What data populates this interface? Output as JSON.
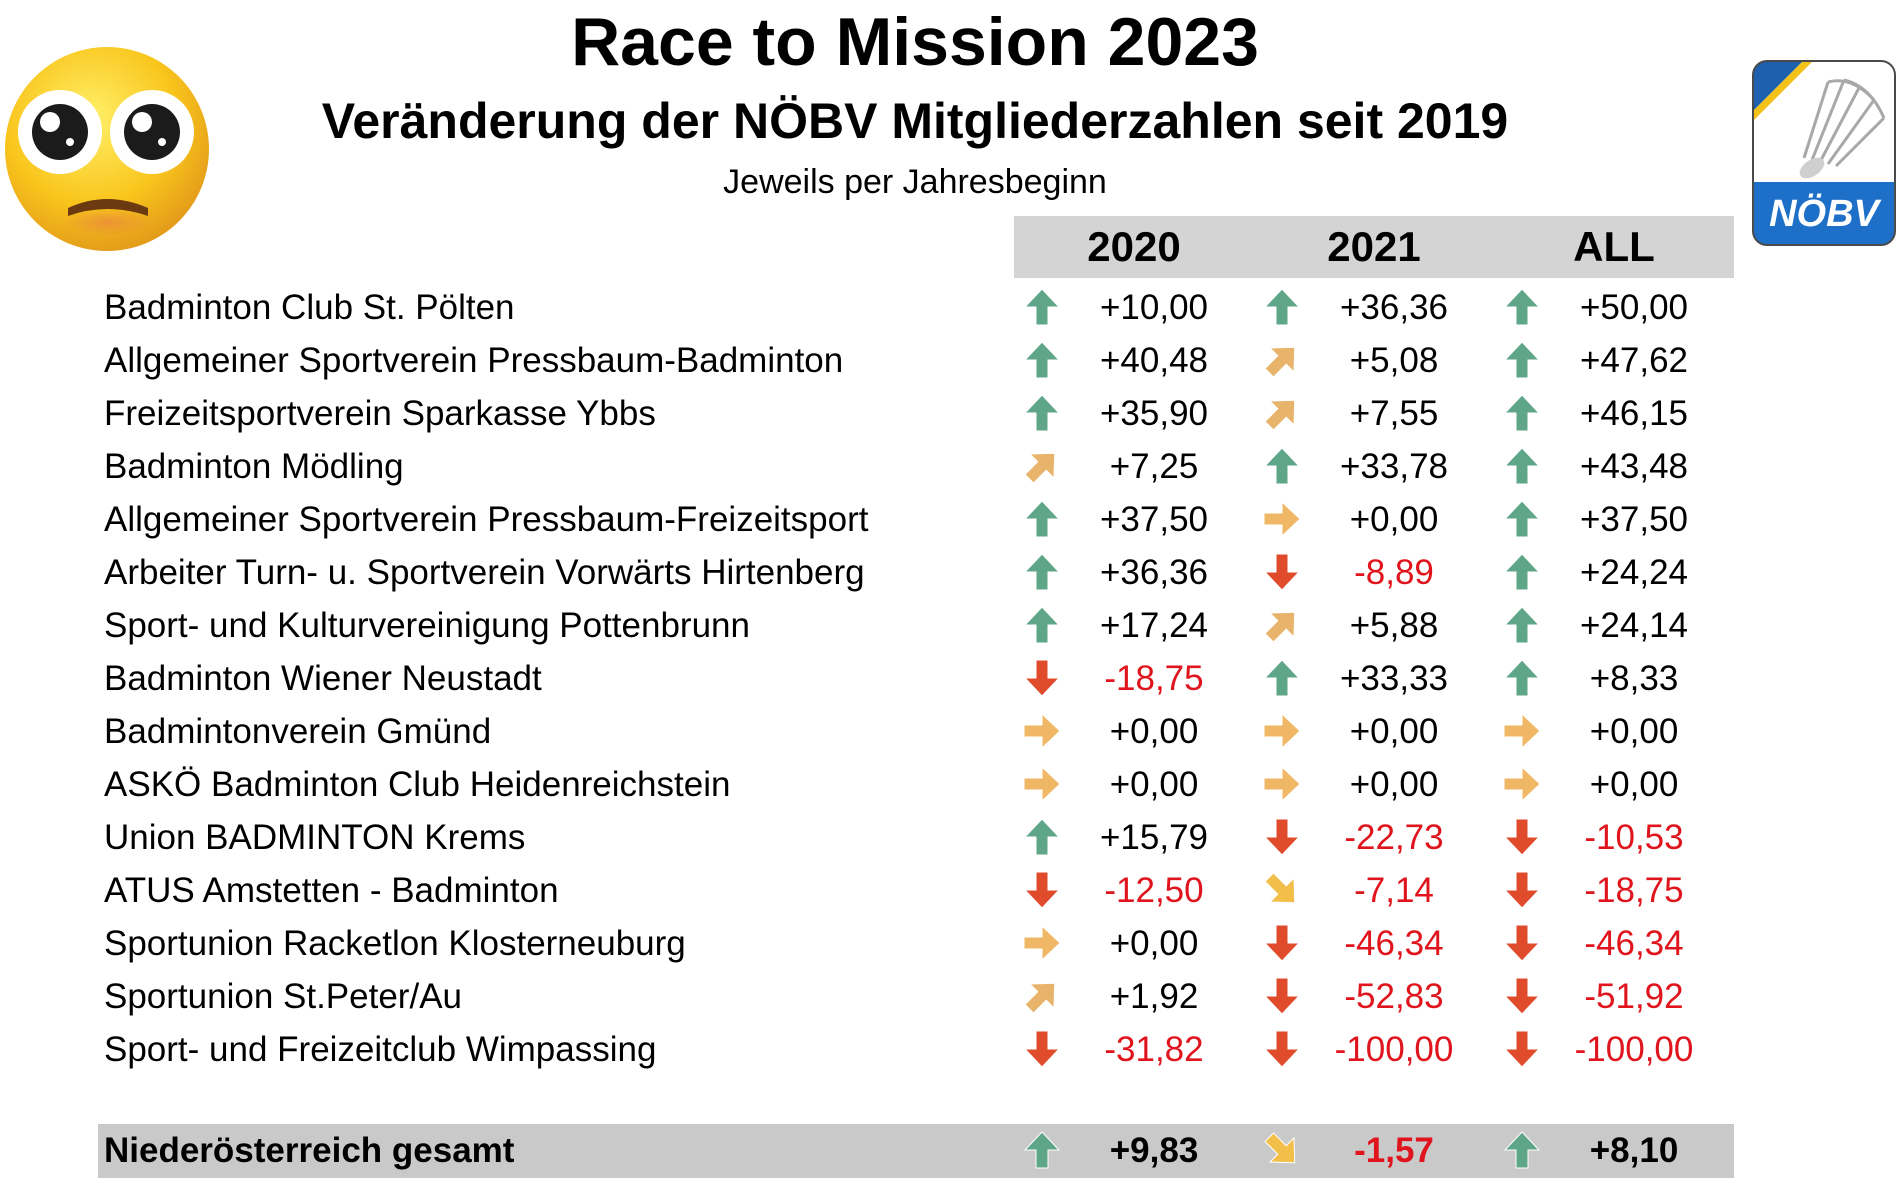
{
  "title": "Race to Mission 2023",
  "subtitle": "Veränderung der NÖBV Mitgliederzahlen seit 2019",
  "note": "Jeweils per Jahresbeginn",
  "logo": {
    "text": "NÖBV",
    "icon": "shuttlecock-icon"
  },
  "emoji": {
    "icon": "pleading-face-emoji"
  },
  "colors": {
    "negative": "#e0141c",
    "arrow_up": "#5fa689",
    "arrow_diag_up": "#e8b36b",
    "arrow_right": "#f0b866",
    "arrow_down": "#e04b2c",
    "arrow_diag_down": "#f2c04a",
    "header_bg": "#d4d4d4",
    "total_bg": "#c9c9c9"
  },
  "columns": [
    "2020",
    "2021",
    "ALL"
  ],
  "rows": [
    {
      "club": "Badminton Club St. Pölten",
      "cells": [
        {
          "arrow": "up",
          "value": "+10,00"
        },
        {
          "arrow": "up",
          "value": "+36,36"
        },
        {
          "arrow": "up",
          "value": "+50,00"
        }
      ]
    },
    {
      "club": "Allgemeiner Sportverein Pressbaum-Badminton",
      "cells": [
        {
          "arrow": "up",
          "value": "+40,48"
        },
        {
          "arrow": "diag-up",
          "value": "+5,08"
        },
        {
          "arrow": "up",
          "value": "+47,62"
        }
      ]
    },
    {
      "club": "Freizeitsportverein Sparkasse Ybbs",
      "cells": [
        {
          "arrow": "up",
          "value": "+35,90"
        },
        {
          "arrow": "diag-up",
          "value": "+7,55"
        },
        {
          "arrow": "up",
          "value": "+46,15"
        }
      ]
    },
    {
      "club": "Badminton Mödling",
      "cells": [
        {
          "arrow": "diag-up",
          "value": "+7,25"
        },
        {
          "arrow": "up",
          "value": "+33,78"
        },
        {
          "arrow": "up",
          "value": "+43,48"
        }
      ]
    },
    {
      "club": "Allgemeiner Sportverein Pressbaum-Freizeitsport",
      "cells": [
        {
          "arrow": "up",
          "value": "+37,50"
        },
        {
          "arrow": "right",
          "value": "+0,00"
        },
        {
          "arrow": "up",
          "value": "+37,50"
        }
      ]
    },
    {
      "club": "Arbeiter Turn- u. Sportverein Vorwärts Hirtenberg",
      "cells": [
        {
          "arrow": "up",
          "value": "+36,36"
        },
        {
          "arrow": "down",
          "value": "-8,89"
        },
        {
          "arrow": "up",
          "value": "+24,24"
        }
      ]
    },
    {
      "club": "Sport- und Kulturvereinigung Pottenbrunn",
      "cells": [
        {
          "arrow": "up",
          "value": "+17,24"
        },
        {
          "arrow": "diag-up",
          "value": "+5,88"
        },
        {
          "arrow": "up",
          "value": "+24,14"
        }
      ]
    },
    {
      "club": "Badminton Wiener Neustadt",
      "cells": [
        {
          "arrow": "down",
          "value": "-18,75"
        },
        {
          "arrow": "up",
          "value": "+33,33"
        },
        {
          "arrow": "up",
          "value": "+8,33"
        }
      ]
    },
    {
      "club": "Badmintonverein Gmünd",
      "cells": [
        {
          "arrow": "right",
          "value": "+0,00"
        },
        {
          "arrow": "right",
          "value": "+0,00"
        },
        {
          "arrow": "right",
          "value": "+0,00"
        }
      ]
    },
    {
      "club": "ASKÖ Badminton Club Heidenreichstein",
      "cells": [
        {
          "arrow": "right",
          "value": "+0,00"
        },
        {
          "arrow": "right",
          "value": "+0,00"
        },
        {
          "arrow": "right",
          "value": "+0,00"
        }
      ]
    },
    {
      "club": "Union BADMINTON Krems",
      "cells": [
        {
          "arrow": "up",
          "value": "+15,79"
        },
        {
          "arrow": "down",
          "value": "-22,73"
        },
        {
          "arrow": "down",
          "value": "-10,53"
        }
      ]
    },
    {
      "club": "ATUS Amstetten - Badminton",
      "cells": [
        {
          "arrow": "down",
          "value": "-12,50"
        },
        {
          "arrow": "diag-down",
          "value": "-7,14"
        },
        {
          "arrow": "down",
          "value": "-18,75"
        }
      ]
    },
    {
      "club": "Sportunion Racketlon Klosterneuburg",
      "cells": [
        {
          "arrow": "right",
          "value": "+0,00"
        },
        {
          "arrow": "down",
          "value": "-46,34"
        },
        {
          "arrow": "down",
          "value": "-46,34"
        }
      ]
    },
    {
      "club": "Sportunion St.Peter/Au",
      "cells": [
        {
          "arrow": "diag-up",
          "value": "+1,92"
        },
        {
          "arrow": "down",
          "value": "-52,83"
        },
        {
          "arrow": "down",
          "value": "-51,92"
        }
      ]
    },
    {
      "club": "Sport- und Freizeitclub Wimpassing",
      "cells": [
        {
          "arrow": "down",
          "value": "-31,82"
        },
        {
          "arrow": "down",
          "value": "-100,00"
        },
        {
          "arrow": "down",
          "value": "-100,00"
        }
      ]
    }
  ],
  "total": {
    "club": "Niederösterreich gesamt",
    "cells": [
      {
        "arrow": "up",
        "value": "+9,83"
      },
      {
        "arrow": "diag-down",
        "value": "-1,57"
      },
      {
        "arrow": "up",
        "value": "+8,10"
      }
    ]
  }
}
